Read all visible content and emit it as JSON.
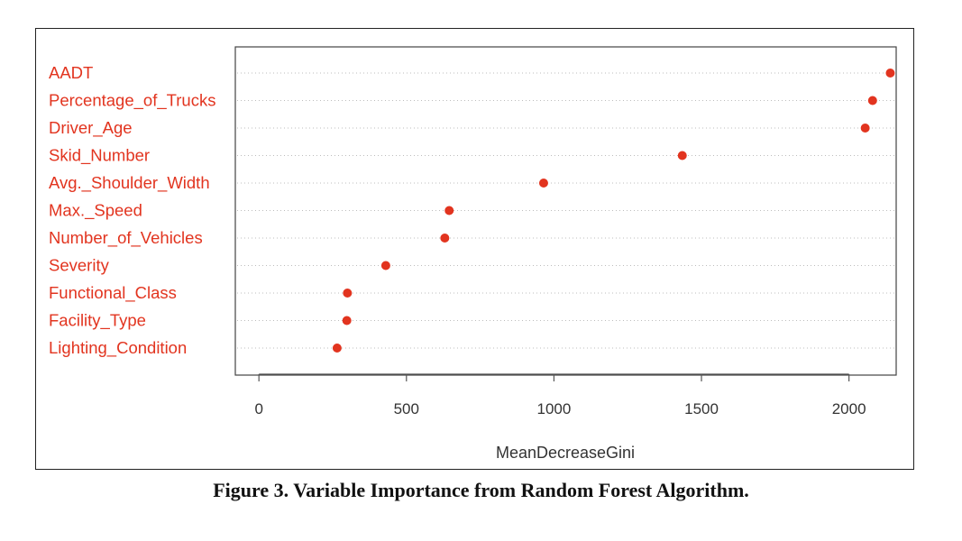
{
  "caption": "Figure 3. Variable Importance from Random Forest Algorithm.",
  "colors": {
    "label": "#e2341f",
    "point": "#e2341f",
    "axis": "#555555",
    "grid": "#bdbdbd",
    "frame": "#222222"
  },
  "chart_data": {
    "type": "scatter",
    "title": "",
    "xlabel": "MeanDecreaseGini",
    "ylabel": "",
    "xlim": [
      -80,
      2160
    ],
    "xticks": [
      0,
      500,
      1000,
      1500,
      2000
    ],
    "xtick_labels": [
      "0",
      "500",
      "1000",
      "1500",
      "2000"
    ],
    "grid": "horizontal dotted",
    "categories": [
      "AADT",
      "Percentage_of_Trucks",
      "Driver_Age",
      "Skid_Number",
      "Avg._Shoulder_Width",
      "Max._Speed",
      "Number_of_Vehicles",
      "Severity",
      "Functional_Class",
      "Facility_Type",
      "Lighting_Condition"
    ],
    "values": [
      2140,
      2080,
      2055,
      1435,
      965,
      645,
      630,
      430,
      300,
      298,
      265
    ]
  }
}
